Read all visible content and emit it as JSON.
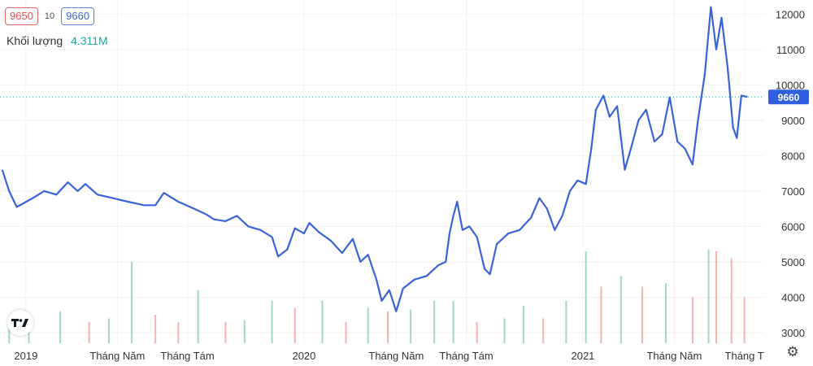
{
  "header": {
    "bid": "9650",
    "spread": "10",
    "ask": "9660",
    "volume_label": "Khối lượng",
    "volume_value": "4.311M"
  },
  "colors": {
    "line": "#3a63d8",
    "last_tag": "#2f5fe0",
    "vol_up": "#9fd6d0",
    "vol_down": "#f2b3b3",
    "grid": "#f2f2f2",
    "price_text": "#333333"
  },
  "icons": {
    "logo": "tradingview-logo-icon",
    "settings": "gear-icon"
  },
  "chart_data": {
    "type": "line",
    "title": "",
    "xlabel": "",
    "ylabel": "",
    "ylim": [
      2700,
      12400
    ],
    "y_ticks": [
      "3000",
      "4000",
      "5000",
      "6000",
      "7000",
      "8000",
      "9000",
      "10000",
      "11000",
      "12000"
    ],
    "x_ticks": [
      {
        "label": "2019",
        "date": "2019-01-01"
      },
      {
        "label": "Tháng Năm",
        "date": "2019-05-01"
      },
      {
        "label": "Tháng Tám",
        "date": "2019-08-01"
      },
      {
        "label": "2020",
        "date": "2020-01-01"
      },
      {
        "label": "Tháng Năm",
        "date": "2020-05-01"
      },
      {
        "label": "Tháng Tám",
        "date": "2020-08-01"
      },
      {
        "label": "2021",
        "date": "2021-01-01"
      },
      {
        "label": "Tháng Năm",
        "date": "2021-05-01"
      },
      {
        "label": "Tháng T",
        "date": "2021-08-01"
      }
    ],
    "last_value": "9660",
    "series": [
      {
        "values": [
          [
            "2018-12-01",
            7600
          ],
          [
            "2018-12-10",
            7000
          ],
          [
            "2018-12-20",
            6550
          ],
          [
            "2019-01-10",
            6800
          ],
          [
            "2019-01-25",
            7000
          ],
          [
            "2019-02-10",
            6900
          ],
          [
            "2019-02-25",
            7250
          ],
          [
            "2019-03-10",
            7000
          ],
          [
            "2019-03-20",
            7200
          ],
          [
            "2019-04-05",
            6900
          ],
          [
            "2019-04-25",
            6800
          ],
          [
            "2019-05-15",
            6700
          ],
          [
            "2019-06-05",
            6600
          ],
          [
            "2019-06-20",
            6600
          ],
          [
            "2019-07-01",
            6950
          ],
          [
            "2019-07-20",
            6700
          ],
          [
            "2019-08-10",
            6500
          ],
          [
            "2019-08-25",
            6350
          ],
          [
            "2019-09-05",
            6200
          ],
          [
            "2019-09-20",
            6150
          ],
          [
            "2019-10-05",
            6300
          ],
          [
            "2019-10-20",
            6000
          ],
          [
            "2019-11-05",
            5900
          ],
          [
            "2019-11-20",
            5700
          ],
          [
            "2019-11-28",
            5150
          ],
          [
            "2019-12-10",
            5350
          ],
          [
            "2019-12-20",
            5950
          ],
          [
            "2020-01-01",
            5800
          ],
          [
            "2020-01-08",
            6100
          ],
          [
            "2020-01-20",
            5850
          ],
          [
            "2020-02-05",
            5600
          ],
          [
            "2020-02-20",
            5250
          ],
          [
            "2020-03-05",
            5650
          ],
          [
            "2020-03-15",
            5000
          ],
          [
            "2020-03-25",
            5200
          ],
          [
            "2020-04-05",
            4500
          ],
          [
            "2020-04-12",
            3900
          ],
          [
            "2020-04-22",
            4200
          ],
          [
            "2020-05-01",
            3600
          ],
          [
            "2020-05-10",
            4250
          ],
          [
            "2020-05-25",
            4500
          ],
          [
            "2020-06-10",
            4600
          ],
          [
            "2020-06-25",
            4900
          ],
          [
            "2020-07-05",
            5000
          ],
          [
            "2020-07-10",
            5800
          ],
          [
            "2020-07-15",
            6300
          ],
          [
            "2020-07-20",
            6700
          ],
          [
            "2020-07-27",
            5900
          ],
          [
            "2020-08-05",
            6000
          ],
          [
            "2020-08-15",
            5700
          ],
          [
            "2020-08-25",
            4800
          ],
          [
            "2020-09-01",
            4650
          ],
          [
            "2020-09-10",
            5500
          ],
          [
            "2020-09-25",
            5800
          ],
          [
            "2020-10-10",
            5900
          ],
          [
            "2020-10-25",
            6250
          ],
          [
            "2020-11-05",
            6800
          ],
          [
            "2020-11-15",
            6500
          ],
          [
            "2020-11-25",
            5900
          ],
          [
            "2020-12-05",
            6300
          ],
          [
            "2020-12-15",
            7000
          ],
          [
            "2020-12-25",
            7300
          ],
          [
            "2021-01-05",
            7200
          ],
          [
            "2021-01-12",
            8200
          ],
          [
            "2021-01-18",
            9300
          ],
          [
            "2021-01-28",
            9700
          ],
          [
            "2021-02-05",
            9100
          ],
          [
            "2021-02-15",
            9400
          ],
          [
            "2021-02-25",
            7600
          ],
          [
            "2021-03-05",
            8200
          ],
          [
            "2021-03-15",
            9000
          ],
          [
            "2021-03-25",
            9300
          ],
          [
            "2021-04-05",
            8400
          ],
          [
            "2021-04-15",
            8600
          ],
          [
            "2021-04-25",
            9650
          ],
          [
            "2021-05-05",
            8400
          ],
          [
            "2021-05-15",
            8200
          ],
          [
            "2021-05-25",
            7750
          ],
          [
            "2021-06-01",
            9000
          ],
          [
            "2021-06-10",
            10300
          ],
          [
            "2021-06-18",
            12200
          ],
          [
            "2021-06-25",
            11000
          ],
          [
            "2021-07-02",
            11900
          ],
          [
            "2021-07-10",
            10500
          ],
          [
            "2021-07-17",
            8800
          ],
          [
            "2021-07-22",
            8500
          ],
          [
            "2021-07-28",
            9700
          ],
          [
            "2021-08-05",
            9660
          ]
        ]
      }
    ],
    "volume": {
      "values": [
        [
          "2018-12-10",
          3150
        ],
        [
          "2019-01-05",
          3450
        ],
        [
          "2019-02-15",
          3600
        ],
        [
          "2019-03-25",
          3300
        ],
        [
          "2019-04-20",
          3400
        ],
        [
          "2019-05-20",
          5000
        ],
        [
          "2019-06-20",
          3500
        ],
        [
          "2019-07-20",
          3300
        ],
        [
          "2019-08-15",
          4200
        ],
        [
          "2019-09-20",
          3300
        ],
        [
          "2019-10-15",
          3350
        ],
        [
          "2019-11-20",
          3900
        ],
        [
          "2019-12-20",
          3700
        ],
        [
          "2020-01-25",
          3900
        ],
        [
          "2020-02-25",
          3300
        ],
        [
          "2020-03-25",
          3700
        ],
        [
          "2020-04-20",
          3600
        ],
        [
          "2020-05-20",
          3650
        ],
        [
          "2020-06-20",
          3900
        ],
        [
          "2020-07-15",
          3900
        ],
        [
          "2020-08-15",
          3300
        ],
        [
          "2020-09-20",
          3400
        ],
        [
          "2020-10-15",
          3750
        ],
        [
          "2020-11-10",
          3400
        ],
        [
          "2020-12-10",
          3900
        ],
        [
          "2021-01-05",
          5300
        ],
        [
          "2021-01-25",
          4300
        ],
        [
          "2021-02-20",
          4600
        ],
        [
          "2021-03-20",
          4300
        ],
        [
          "2021-04-20",
          4400
        ],
        [
          "2021-05-25",
          4000
        ],
        [
          "2021-06-15",
          5350
        ],
        [
          "2021-06-25",
          5300
        ],
        [
          "2021-07-15",
          5100
        ],
        [
          "2021-08-01",
          4000
        ]
      ]
    }
  }
}
